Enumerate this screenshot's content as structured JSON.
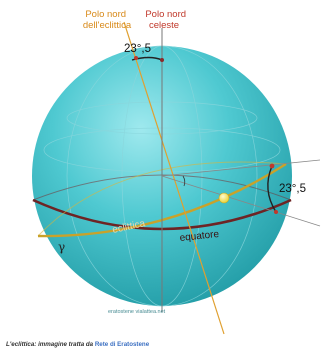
{
  "labels": {
    "polo_eclittica_line1": "Polo nord",
    "polo_eclittica_line2": "dell'eclittica",
    "polo_celeste_line1": "Polo nord",
    "polo_celeste_line2": "celeste",
    "angle_top": "23°,5",
    "angle_right": "23°,5",
    "eclittica": "eclittica",
    "equatore": "equatore",
    "gamma": "γ",
    "watermark": "eratostene vialattea.net"
  },
  "caption": {
    "prefix": "L'eclittica: immagine tratta da",
    "link": "Rete di Eratostene"
  },
  "colors": {
    "sphere": "#3cc0c8",
    "ecliptic": "#d9b53a",
    "equator": "#7a2a2a",
    "polo_eclittica_text": "#d88a1a",
    "polo_celeste_text": "#c0392b",
    "sun": "#f3e64a"
  }
}
